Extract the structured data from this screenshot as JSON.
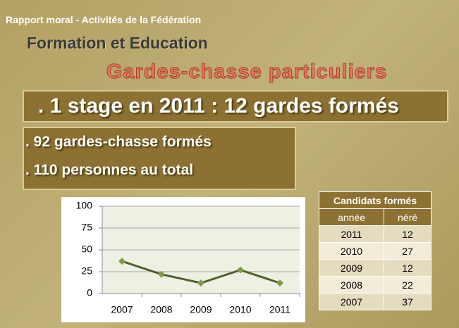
{
  "header": {
    "breadcrumb": "Rapport moral - Activités de la Fédération",
    "section": "Formation et Education",
    "title": "Gardes-chasse particuliers"
  },
  "banner": ". 1 stage en 2011 : 12 gardes formés",
  "facts": [
    ".  92 gardes-chasse formés",
    ". 110 personnes au total"
  ],
  "chart_data": {
    "type": "line",
    "categories": [
      "2007",
      "2008",
      "2009",
      "2010",
      "2011"
    ],
    "series": [
      {
        "color": "#4f6228",
        "values": [
          37,
          22,
          12,
          27,
          12
        ]
      }
    ],
    "ylim": [
      0,
      100
    ],
    "yticks": [
      0,
      25,
      50,
      75,
      100
    ],
    "grid": true
  },
  "table": {
    "title": "Candidats formés",
    "columns": [
      "année",
      "néré"
    ],
    "rows": [
      [
        "2011",
        "12"
      ],
      [
        "2010",
        "27"
      ],
      [
        "2009",
        "12"
      ],
      [
        "2008",
        "22"
      ],
      [
        "2007",
        "37"
      ]
    ]
  }
}
